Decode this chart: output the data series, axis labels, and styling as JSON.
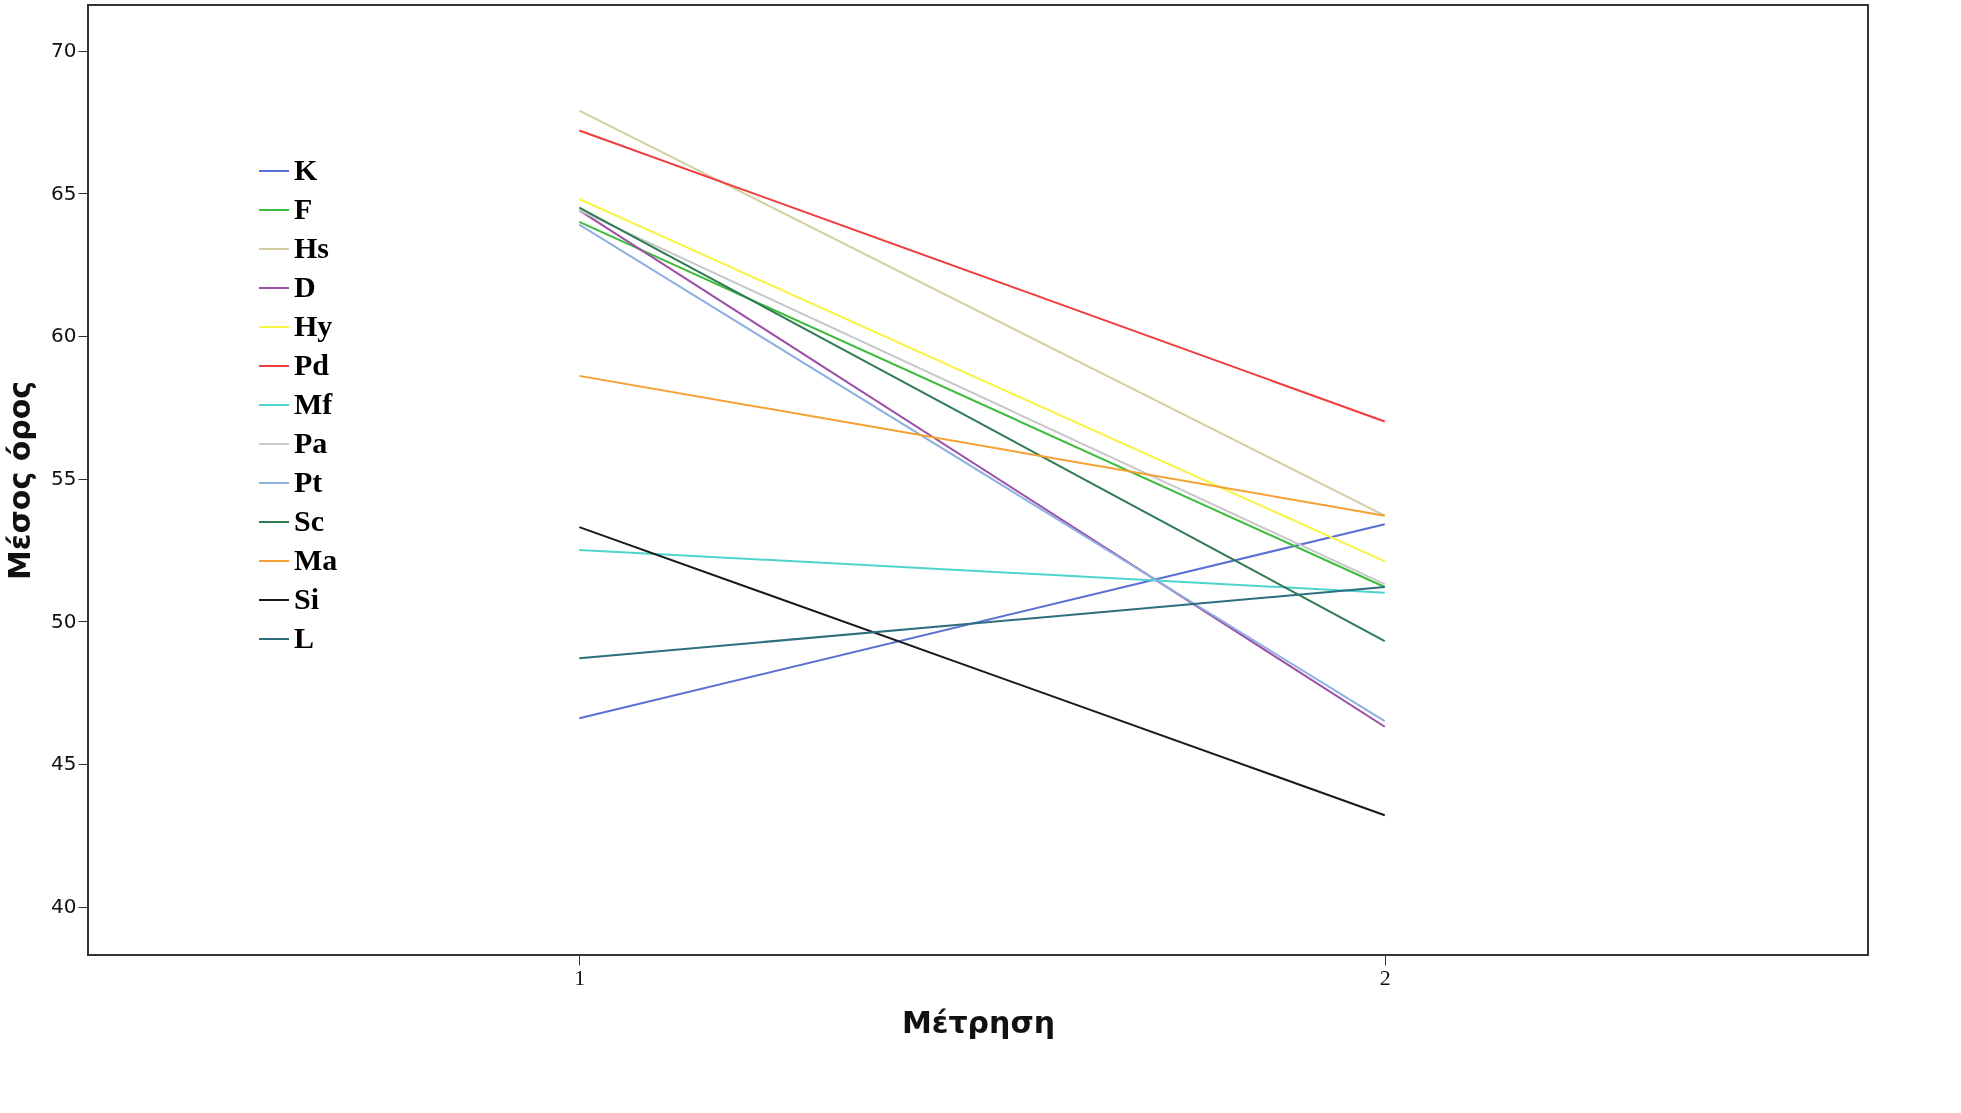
{
  "chart_data": {
    "type": "line",
    "xlabel": "Μέτρηση",
    "ylabel": "Μέσος όρος",
    "x": [
      1,
      2
    ],
    "xlim": [
      0.39,
      2.6
    ],
    "xticks": [
      1,
      2
    ],
    "ylim": [
      38.3,
      71.6
    ],
    "yticks": [
      40,
      45,
      50,
      55,
      60,
      65,
      70
    ],
    "grid": false,
    "legend": "top left",
    "marker": "none",
    "line_style": "solid",
    "series": [
      {
        "name": "K",
        "color": "#5b6fd4",
        "values": [
          46.6,
          53.4
        ]
      },
      {
        "name": "F",
        "color": "#3dbb3d",
        "values": [
          64.0,
          51.2
        ]
      },
      {
        "name": "Hs",
        "color": "#d4cfa0",
        "values": [
          67.9,
          53.7
        ]
      },
      {
        "name": "D",
        "color": "#9b4fa6",
        "values": [
          64.4,
          46.3
        ]
      },
      {
        "name": "Hy",
        "color": "#f5f542",
        "values": [
          64.8,
          52.1
        ]
      },
      {
        "name": "Pd",
        "color": "#f03c3c",
        "values": [
          67.2,
          57.0
        ]
      },
      {
        "name": "Mf",
        "color": "#4fd4cc",
        "values": [
          52.5,
          51.0
        ]
      },
      {
        "name": "Pa",
        "color": "#c8c8c8",
        "values": [
          64.4,
          51.3
        ]
      },
      {
        "name": "Pt",
        "color": "#8fb0e0",
        "values": [
          63.9,
          46.5
        ]
      },
      {
        "name": "Sc",
        "color": "#2e7a52",
        "values": [
          64.5,
          49.3
        ]
      },
      {
        "name": "Ma",
        "color": "#f5a030",
        "values": [
          58.6,
          53.7
        ]
      },
      {
        "name": "Si",
        "color": "#1a1a1a",
        "values": [
          53.3,
          43.2
        ]
      },
      {
        "name": "L",
        "color": "#2e6e7e",
        "values": [
          48.7,
          51.2
        ]
      }
    ]
  }
}
